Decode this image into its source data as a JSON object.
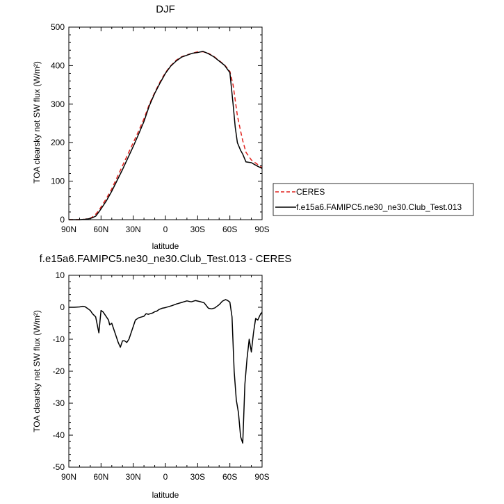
{
  "chart_data": [
    {
      "type": "line",
      "title": "DJF",
      "xlabel": "latitude",
      "ylabel": "TOA clearsky net SW flux (W/m²)",
      "xlim": [
        90,
        -90
      ],
      "ylim": [
        0,
        500
      ],
      "x_ticks": [
        90,
        60,
        30,
        0,
        -30,
        -60,
        -90
      ],
      "x_tick_labels": [
        "90N",
        "60N",
        "30N",
        "0",
        "30S",
        "60S",
        "90S"
      ],
      "y_ticks": [
        0,
        100,
        200,
        300,
        400,
        500
      ],
      "y_tick_labels": [
        "0",
        "100",
        "200",
        "300",
        "400",
        "500"
      ],
      "legend": {
        "placement": "right",
        "entries": [
          "CERES",
          "f.e15a6.FAMIPC5.ne30_ne30.Club_Test.013"
        ]
      },
      "series": [
        {
          "name": "CERES",
          "color": "#e0201b",
          "dash": "dashed",
          "x": [
            90,
            80,
            75,
            70,
            68,
            65,
            62,
            60,
            55,
            50,
            45,
            40,
            35,
            30,
            25,
            20,
            15,
            10,
            5,
            0,
            -5,
            -10,
            -15,
            -20,
            -25,
            -30,
            -35,
            -40,
            -45,
            -50,
            -55,
            -60,
            -63,
            -65,
            -67,
            -70,
            -72,
            -75,
            -80,
            -85,
            -90
          ],
          "y": [
            0,
            0,
            1,
            4,
            7,
            14,
            24,
            33,
            55,
            80,
            110,
            140,
            170,
            200,
            230,
            262,
            300,
            330,
            358,
            382,
            400,
            414,
            423,
            428,
            432,
            436,
            436,
            432,
            424,
            413,
            402,
            385,
            350,
            310,
            270,
            230,
            205,
            175,
            155,
            145,
            135
          ]
        },
        {
          "name": "f.e15a6.FAMIPC5.ne30_ne30.Club_Test.013",
          "color": "#000000",
          "dash": "solid",
          "x": [
            90,
            80,
            75,
            70,
            68,
            65,
            62,
            60,
            55,
            50,
            45,
            40,
            35,
            30,
            25,
            20,
            15,
            10,
            5,
            0,
            -5,
            -10,
            -15,
            -20,
            -25,
            -30,
            -35,
            -40,
            -45,
            -50,
            -55,
            -60,
            -63,
            -65,
            -67,
            -70,
            -72,
            -75,
            -80,
            -85,
            -90
          ],
          "y": [
            0,
            0,
            1,
            3,
            5,
            9,
            20,
            28,
            49,
            74,
            102,
            130,
            160,
            190,
            222,
            255,
            296,
            328,
            355,
            380,
            399,
            412,
            422,
            427,
            432,
            434,
            437,
            431,
            423,
            412,
            401,
            382,
            300,
            240,
            200,
            180,
            170,
            150,
            148,
            140,
            133
          ]
        }
      ]
    },
    {
      "type": "line",
      "title": "f.e15a6.FAMIPC5.ne30_ne30.Club_Test.013 - CERES",
      "xlabel": "latitude",
      "ylabel": "TOA clearsky net SW flux (W/m²)",
      "xlim": [
        90,
        -90
      ],
      "ylim": [
        -50,
        10
      ],
      "x_ticks": [
        90,
        60,
        30,
        0,
        -30,
        -60,
        -90
      ],
      "x_tick_labels": [
        "90N",
        "60N",
        "30N",
        "0",
        "30S",
        "60S",
        "90S"
      ],
      "y_ticks": [
        10,
        0,
        -10,
        -20,
        -30,
        -40,
        -50
      ],
      "y_tick_labels": [
        "10",
        "0",
        "-10",
        "-20",
        "-30",
        "-40",
        "-50"
      ],
      "series": [
        {
          "color": "#000000",
          "x": [
            90,
            85,
            80,
            77,
            75,
            72,
            70,
            68,
            65,
            62,
            60,
            58,
            55,
            53,
            52,
            50,
            48,
            46,
            44,
            42,
            40,
            38,
            36,
            34,
            32,
            30,
            28,
            25,
            22,
            20,
            18,
            16,
            14,
            12,
            10,
            8,
            6,
            3,
            0,
            -3,
            -6,
            -10,
            -15,
            -20,
            -24,
            -28,
            -32,
            -36,
            -40,
            -43,
            -46,
            -50,
            -53,
            -56,
            -58,
            -60,
            -62,
            -64,
            -66,
            -68,
            -70,
            -72,
            -74,
            -76,
            -78,
            -80,
            -82,
            -84,
            -86,
            -88,
            -90
          ],
          "y": [
            0,
            0,
            0.1,
            0.3,
            0.2,
            -0.5,
            -1,
            -2,
            -3,
            -8,
            -1,
            -1.5,
            -3,
            -4,
            -5.5,
            -5,
            -7,
            -9,
            -11,
            -12.5,
            -10.5,
            -10.5,
            -11,
            -10,
            -8,
            -6,
            -4,
            -3.3,
            -3,
            -2.8,
            -2,
            -2.2,
            -2,
            -1.8,
            -1.4,
            -1.2,
            -0.7,
            -0.3,
            -0.1,
            0.2,
            0.5,
            1,
            1.5,
            2,
            1.7,
            2.1,
            1.8,
            1.4,
            -0.3,
            -0.5,
            -0.2,
            0.8,
            1.9,
            2.4,
            2.1,
            1.6,
            -3,
            -20,
            -29,
            -33,
            -40.5,
            -42.5,
            -24,
            -16,
            -10,
            -14,
            -8,
            -3.5,
            -4,
            -2.5,
            -1.5
          ]
        }
      ]
    }
  ]
}
